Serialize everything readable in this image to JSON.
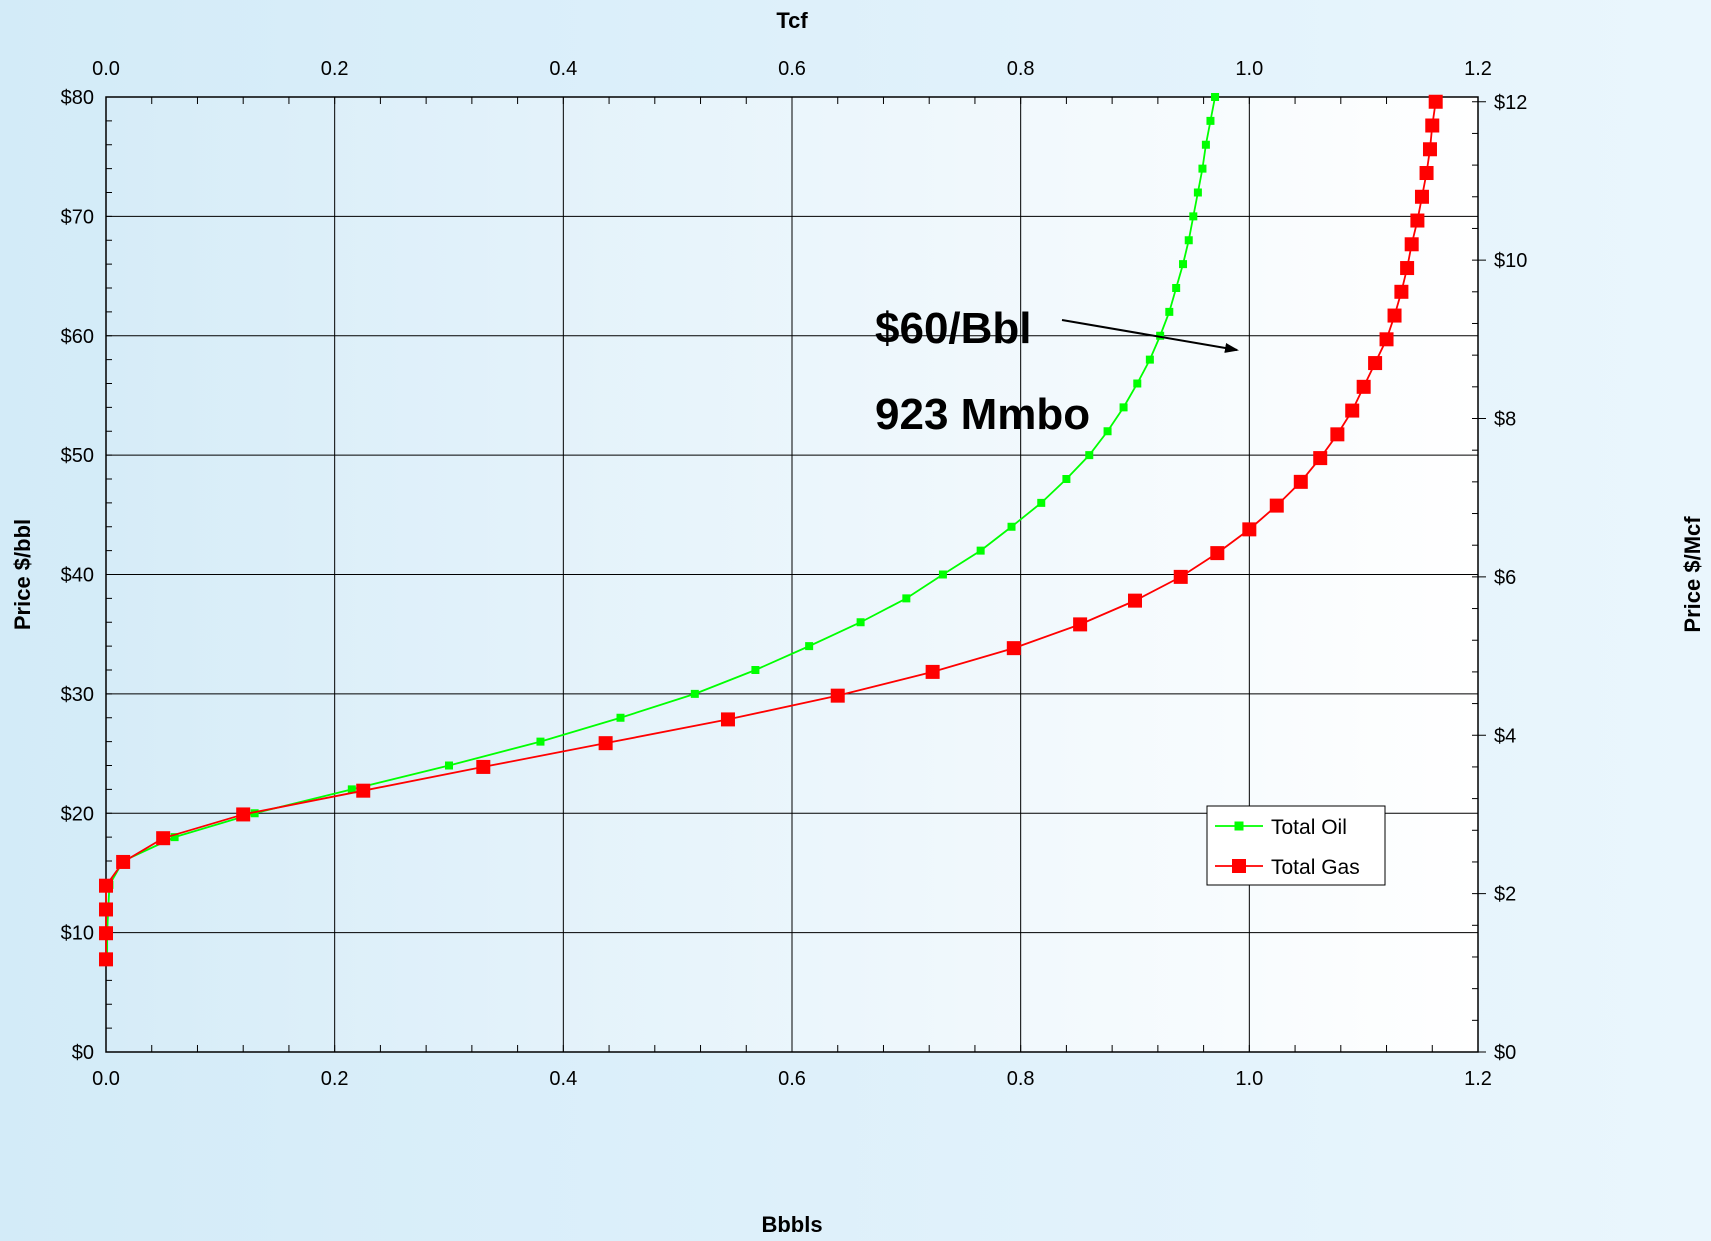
{
  "chart_data": {
    "type": "line",
    "title": "",
    "xlabel": "Bbbls",
    "x2label": "Tcf",
    "ylabel": "Price $/bbl",
    "y2label": "Price $/Mcf",
    "xlim": [
      0,
      1.2
    ],
    "x2lim": [
      0,
      1.2
    ],
    "ylim": [
      0,
      80
    ],
    "y2lim": [
      0,
      12.06
    ],
    "x_ticks": [
      "0.0",
      "0.2",
      "0.4",
      "0.6",
      "0.8",
      "1.0",
      "1.2"
    ],
    "x2_ticks": [
      "0.0",
      "0.2",
      "0.4",
      "0.6",
      "0.8",
      "1.0",
      "1.2"
    ],
    "y_ticks": [
      "$0",
      "$10",
      "$20",
      "$30",
      "$40",
      "$50",
      "$60",
      "$70",
      "$80"
    ],
    "y2_ticks": [
      "$0",
      "$2",
      "$4",
      "$6",
      "$8",
      "$10",
      "$12"
    ],
    "grid": true,
    "legend_position": "lower-right",
    "series": [
      {
        "name": "Total Oil",
        "color": "#00ff00",
        "marker": "square-small",
        "points": [
          [
            0.001,
            8
          ],
          [
            0.001,
            10
          ],
          [
            0.002,
            12
          ],
          [
            0.003,
            14
          ],
          [
            0.015,
            16
          ],
          [
            0.06,
            18
          ],
          [
            0.13,
            20
          ],
          [
            0.215,
            22
          ],
          [
            0.3,
            24
          ],
          [
            0.38,
            26
          ],
          [
            0.45,
            28
          ],
          [
            0.515,
            30
          ],
          [
            0.568,
            32
          ],
          [
            0.615,
            34
          ],
          [
            0.66,
            36
          ],
          [
            0.7,
            38
          ],
          [
            0.732,
            40
          ],
          [
            0.765,
            42
          ],
          [
            0.792,
            44
          ],
          [
            0.818,
            46
          ],
          [
            0.84,
            48
          ],
          [
            0.86,
            50
          ],
          [
            0.876,
            52
          ],
          [
            0.89,
            54
          ],
          [
            0.902,
            56
          ],
          [
            0.913,
            58
          ],
          [
            0.922,
            60
          ],
          [
            0.93,
            62
          ],
          [
            0.936,
            64
          ],
          [
            0.942,
            66
          ],
          [
            0.947,
            68
          ],
          [
            0.951,
            70
          ],
          [
            0.955,
            72
          ],
          [
            0.959,
            74
          ],
          [
            0.962,
            76
          ],
          [
            0.966,
            78
          ],
          [
            0.97,
            80
          ]
        ]
      },
      {
        "name": "Total Gas",
        "color": "#ff0000",
        "marker": "square-large",
        "points": [
          [
            0.0,
            1.17
          ],
          [
            0.0,
            1.5
          ],
          [
            0.0,
            1.8
          ],
          [
            0.0,
            2.1
          ],
          [
            0.015,
            2.4
          ],
          [
            0.05,
            2.7
          ],
          [
            0.12,
            3.0
          ],
          [
            0.225,
            3.3
          ],
          [
            0.33,
            3.6
          ],
          [
            0.437,
            3.9
          ],
          [
            0.544,
            4.2
          ],
          [
            0.64,
            4.5
          ],
          [
            0.723,
            4.8
          ],
          [
            0.794,
            5.1
          ],
          [
            0.852,
            5.4
          ],
          [
            0.9,
            5.7
          ],
          [
            0.94,
            6.0
          ],
          [
            0.972,
            6.3
          ],
          [
            1.0,
            6.6
          ],
          [
            1.024,
            6.9
          ],
          [
            1.045,
            7.2
          ],
          [
            1.062,
            7.5
          ],
          [
            1.077,
            7.8
          ],
          [
            1.09,
            8.1
          ],
          [
            1.1,
            8.4
          ],
          [
            1.11,
            8.7
          ],
          [
            1.12,
            9.0
          ],
          [
            1.127,
            9.3
          ],
          [
            1.133,
            9.6
          ],
          [
            1.138,
            9.9
          ],
          [
            1.142,
            10.2
          ],
          [
            1.147,
            10.5
          ],
          [
            1.151,
            10.8
          ],
          [
            1.155,
            11.1
          ],
          [
            1.158,
            11.4
          ],
          [
            1.16,
            11.7
          ],
          [
            1.163,
            12.0
          ]
        ]
      }
    ],
    "annotations": [
      {
        "text": "$60/Bbl"
      },
      {
        "text": "923 Mmbo"
      }
    ]
  }
}
